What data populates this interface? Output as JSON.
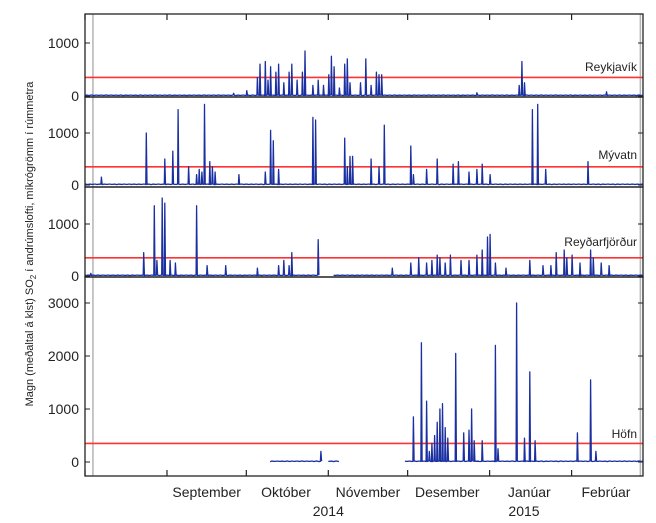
{
  "chart_data": {
    "type": "line",
    "ylabel_main": "Magn (meðaltal á klst) SO",
    "ylabel_sub": "2",
    "ylabel_rest": " í andrúmslofti, míkrógrömm í rúmmetra",
    "x_start": "2014-08-01",
    "x_end": "2015-02-28",
    "month_ticks": [
      "2014-08-01",
      "2014-09-01",
      "2014-10-01",
      "2014-11-01",
      "2014-12-01",
      "2015-01-01",
      "2015-02-01"
    ],
    "month_labels": [
      {
        "label": "September",
        "date": "2014-09-16"
      },
      {
        "label": "Október",
        "date": "2014-10-16"
      },
      {
        "label": "Nóvember",
        "date": "2014-11-16"
      },
      {
        "label": "Desember",
        "date": "2014-12-16"
      },
      {
        "label": "Janúar",
        "date": "2015-01-16"
      },
      {
        "label": "Febrúar",
        "date": "2015-02-14"
      }
    ],
    "year_labels": [
      {
        "label": "2014",
        "date": "2014-11-01"
      },
      {
        "label": "2015",
        "date": "2015-01-14"
      }
    ],
    "eruption_markers": [
      "2014-08-04",
      "2015-02-27"
    ],
    "threshold": 350,
    "line_color": "#1a2fa0",
    "threshold_color": "#ff3333",
    "panels": [
      {
        "name": "Reykjavík",
        "ylim": [
          0,
          1400
        ],
        "yticks": [
          0,
          1000
        ],
        "data_start": "2014-08-01",
        "data_end": "2015-02-28",
        "gaps": [],
        "spikes": [
          [
            "2014-09-26",
            50
          ],
          [
            "2014-10-01",
            100
          ],
          [
            "2014-10-05",
            350
          ],
          [
            "2014-10-06",
            600
          ],
          [
            "2014-10-08",
            650
          ],
          [
            "2014-10-09",
            300
          ],
          [
            "2014-10-10",
            550
          ],
          [
            "2014-10-12",
            450
          ],
          [
            "2014-10-13",
            600
          ],
          [
            "2014-10-15",
            250
          ],
          [
            "2014-10-17",
            450
          ],
          [
            "2014-10-18",
            600
          ],
          [
            "2014-10-20",
            300
          ],
          [
            "2014-10-22",
            450
          ],
          [
            "2014-10-23",
            850
          ],
          [
            "2014-10-26",
            200
          ],
          [
            "2014-10-28",
            300
          ],
          [
            "2014-10-30",
            200
          ],
          [
            "2014-11-01",
            400
          ],
          [
            "2014-11-02",
            750
          ],
          [
            "2014-11-03",
            550
          ],
          [
            "2014-11-05",
            150
          ],
          [
            "2014-11-07",
            600
          ],
          [
            "2014-11-08",
            700
          ],
          [
            "2014-11-09",
            250
          ],
          [
            "2014-11-13",
            250
          ],
          [
            "2014-11-15",
            700
          ],
          [
            "2014-11-17",
            200
          ],
          [
            "2014-11-19",
            450
          ],
          [
            "2014-11-20",
            400
          ],
          [
            "2014-11-21",
            400
          ],
          [
            "2014-12-27",
            60
          ],
          [
            "2015-01-12",
            200
          ],
          [
            "2015-01-13",
            650
          ],
          [
            "2015-01-14",
            250
          ],
          [
            "2015-02-14",
            80
          ]
        ]
      },
      {
        "name": "Mývatn",
        "ylim": [
          0,
          1500
        ],
        "yticks": [
          0,
          1000
        ],
        "data_start": "2014-08-01",
        "data_end": "2015-02-28",
        "gaps": [],
        "spikes": [
          [
            "2014-08-07",
            150
          ],
          [
            "2014-08-24",
            1000
          ],
          [
            "2014-08-31",
            500
          ],
          [
            "2014-09-03",
            650
          ],
          [
            "2014-09-05",
            1450
          ],
          [
            "2014-09-09",
            350
          ],
          [
            "2014-09-12",
            200
          ],
          [
            "2014-09-13",
            300
          ],
          [
            "2014-09-14",
            250
          ],
          [
            "2014-09-15",
            1550
          ],
          [
            "2014-09-17",
            450
          ],
          [
            "2014-09-18",
            350
          ],
          [
            "2014-09-19",
            250
          ],
          [
            "2014-09-28",
            200
          ],
          [
            "2014-10-08",
            250
          ],
          [
            "2014-10-10",
            1050
          ],
          [
            "2014-10-11",
            850
          ],
          [
            "2014-10-13",
            300
          ],
          [
            "2014-10-26",
            1300
          ],
          [
            "2014-10-27",
            1250
          ],
          [
            "2014-11-07",
            900
          ],
          [
            "2014-11-08",
            350
          ],
          [
            "2014-11-09",
            550
          ],
          [
            "2014-11-10",
            550
          ],
          [
            "2014-11-17",
            500
          ],
          [
            "2014-11-20",
            350
          ],
          [
            "2014-11-22",
            1150
          ],
          [
            "2014-12-02",
            750
          ],
          [
            "2014-12-03",
            200
          ],
          [
            "2014-12-08",
            300
          ],
          [
            "2014-12-12",
            500
          ],
          [
            "2014-12-18",
            400
          ],
          [
            "2014-12-20",
            450
          ],
          [
            "2014-12-24",
            250
          ],
          [
            "2014-12-27",
            300
          ],
          [
            "2014-12-29",
            400
          ],
          [
            "2015-01-01",
            200
          ],
          [
            "2015-01-17",
            1450
          ],
          [
            "2015-01-19",
            1550
          ],
          [
            "2015-01-22",
            300
          ],
          [
            "2015-02-07",
            450
          ]
        ]
      },
      {
        "name": "Reyðarfjörður",
        "ylim": [
          0,
          1600
        ],
        "yticks": [
          0,
          1000
        ],
        "data_start": "2014-08-01",
        "data_end": "2015-02-28",
        "gaps": [
          [
            "2014-10-28",
            "2014-11-03"
          ]
        ],
        "spikes": [
          [
            "2014-08-03",
            50
          ],
          [
            "2014-08-23",
            450
          ],
          [
            "2014-08-27",
            1350
          ],
          [
            "2014-08-28",
            300
          ],
          [
            "2014-08-30",
            1500
          ],
          [
            "2014-08-31",
            1400
          ],
          [
            "2014-09-02",
            300
          ],
          [
            "2014-09-04",
            250
          ],
          [
            "2014-09-12",
            1350
          ],
          [
            "2014-09-16",
            200
          ],
          [
            "2014-09-23",
            200
          ],
          [
            "2014-10-05",
            150
          ],
          [
            "2014-10-13",
            200
          ],
          [
            "2014-10-15",
            300
          ],
          [
            "2014-10-17",
            200
          ],
          [
            "2014-10-18",
            450
          ],
          [
            "2014-10-28",
            700
          ],
          [
            "2014-11-25",
            150
          ],
          [
            "2014-12-02",
            250
          ],
          [
            "2014-12-05",
            350
          ],
          [
            "2014-12-08",
            250
          ],
          [
            "2014-12-10",
            300
          ],
          [
            "2014-12-12",
            400
          ],
          [
            "2014-12-13",
            350
          ],
          [
            "2014-12-15",
            250
          ],
          [
            "2014-12-17",
            400
          ],
          [
            "2014-12-21",
            300
          ],
          [
            "2014-12-24",
            300
          ],
          [
            "2014-12-27",
            400
          ],
          [
            "2014-12-29",
            500
          ],
          [
            "2014-12-31",
            750
          ],
          [
            "2015-01-01",
            800
          ],
          [
            "2015-01-03",
            250
          ],
          [
            "2015-01-07",
            150
          ],
          [
            "2015-01-16",
            300
          ],
          [
            "2015-01-21",
            200
          ],
          [
            "2015-01-24",
            200
          ],
          [
            "2015-01-26",
            450
          ],
          [
            "2015-01-29",
            500
          ],
          [
            "2015-01-30",
            350
          ],
          [
            "2015-02-01",
            400
          ],
          [
            "2015-02-04",
            250
          ],
          [
            "2015-02-08",
            500
          ],
          [
            "2015-02-09",
            350
          ],
          [
            "2015-02-12",
            250
          ],
          [
            "2015-02-15",
            200
          ]
        ]
      },
      {
        "name": "Höfn",
        "ylim": [
          -80,
          3250
        ],
        "yticks": [
          0,
          1000,
          2000,
          3000
        ],
        "data_start": "2014-10-10",
        "data_end": "2015-02-28",
        "gaps": [
          [
            "2014-10-29",
            "2014-11-01"
          ],
          [
            "2014-11-05",
            "2014-11-30"
          ],
          [
            "2014-12-25",
            "2014-12-28"
          ]
        ],
        "spikes": [
          [
            "2014-10-29",
            200
          ],
          [
            "2014-12-03",
            850
          ],
          [
            "2014-12-06",
            2250
          ],
          [
            "2014-12-08",
            1150
          ],
          [
            "2014-12-09",
            200
          ],
          [
            "2014-12-10",
            350
          ],
          [
            "2014-12-11",
            500
          ],
          [
            "2014-12-12",
            750
          ],
          [
            "2014-12-13",
            1000
          ],
          [
            "2014-12-14",
            1100
          ],
          [
            "2014-12-15",
            650
          ],
          [
            "2014-12-16",
            450
          ],
          [
            "2014-12-19",
            2050
          ],
          [
            "2014-12-22",
            550
          ],
          [
            "2014-12-24",
            600
          ],
          [
            "2014-12-25",
            1000
          ],
          [
            "2014-12-26",
            400
          ],
          [
            "2014-12-29",
            400
          ],
          [
            "2015-01-03",
            2200
          ],
          [
            "2015-01-04",
            250
          ],
          [
            "2015-01-11",
            3000
          ],
          [
            "2015-01-14",
            450
          ],
          [
            "2015-01-16",
            1700
          ],
          [
            "2015-01-18",
            400
          ],
          [
            "2015-02-03",
            550
          ],
          [
            "2015-02-08",
            1550
          ],
          [
            "2015-02-10",
            200
          ]
        ]
      }
    ]
  }
}
